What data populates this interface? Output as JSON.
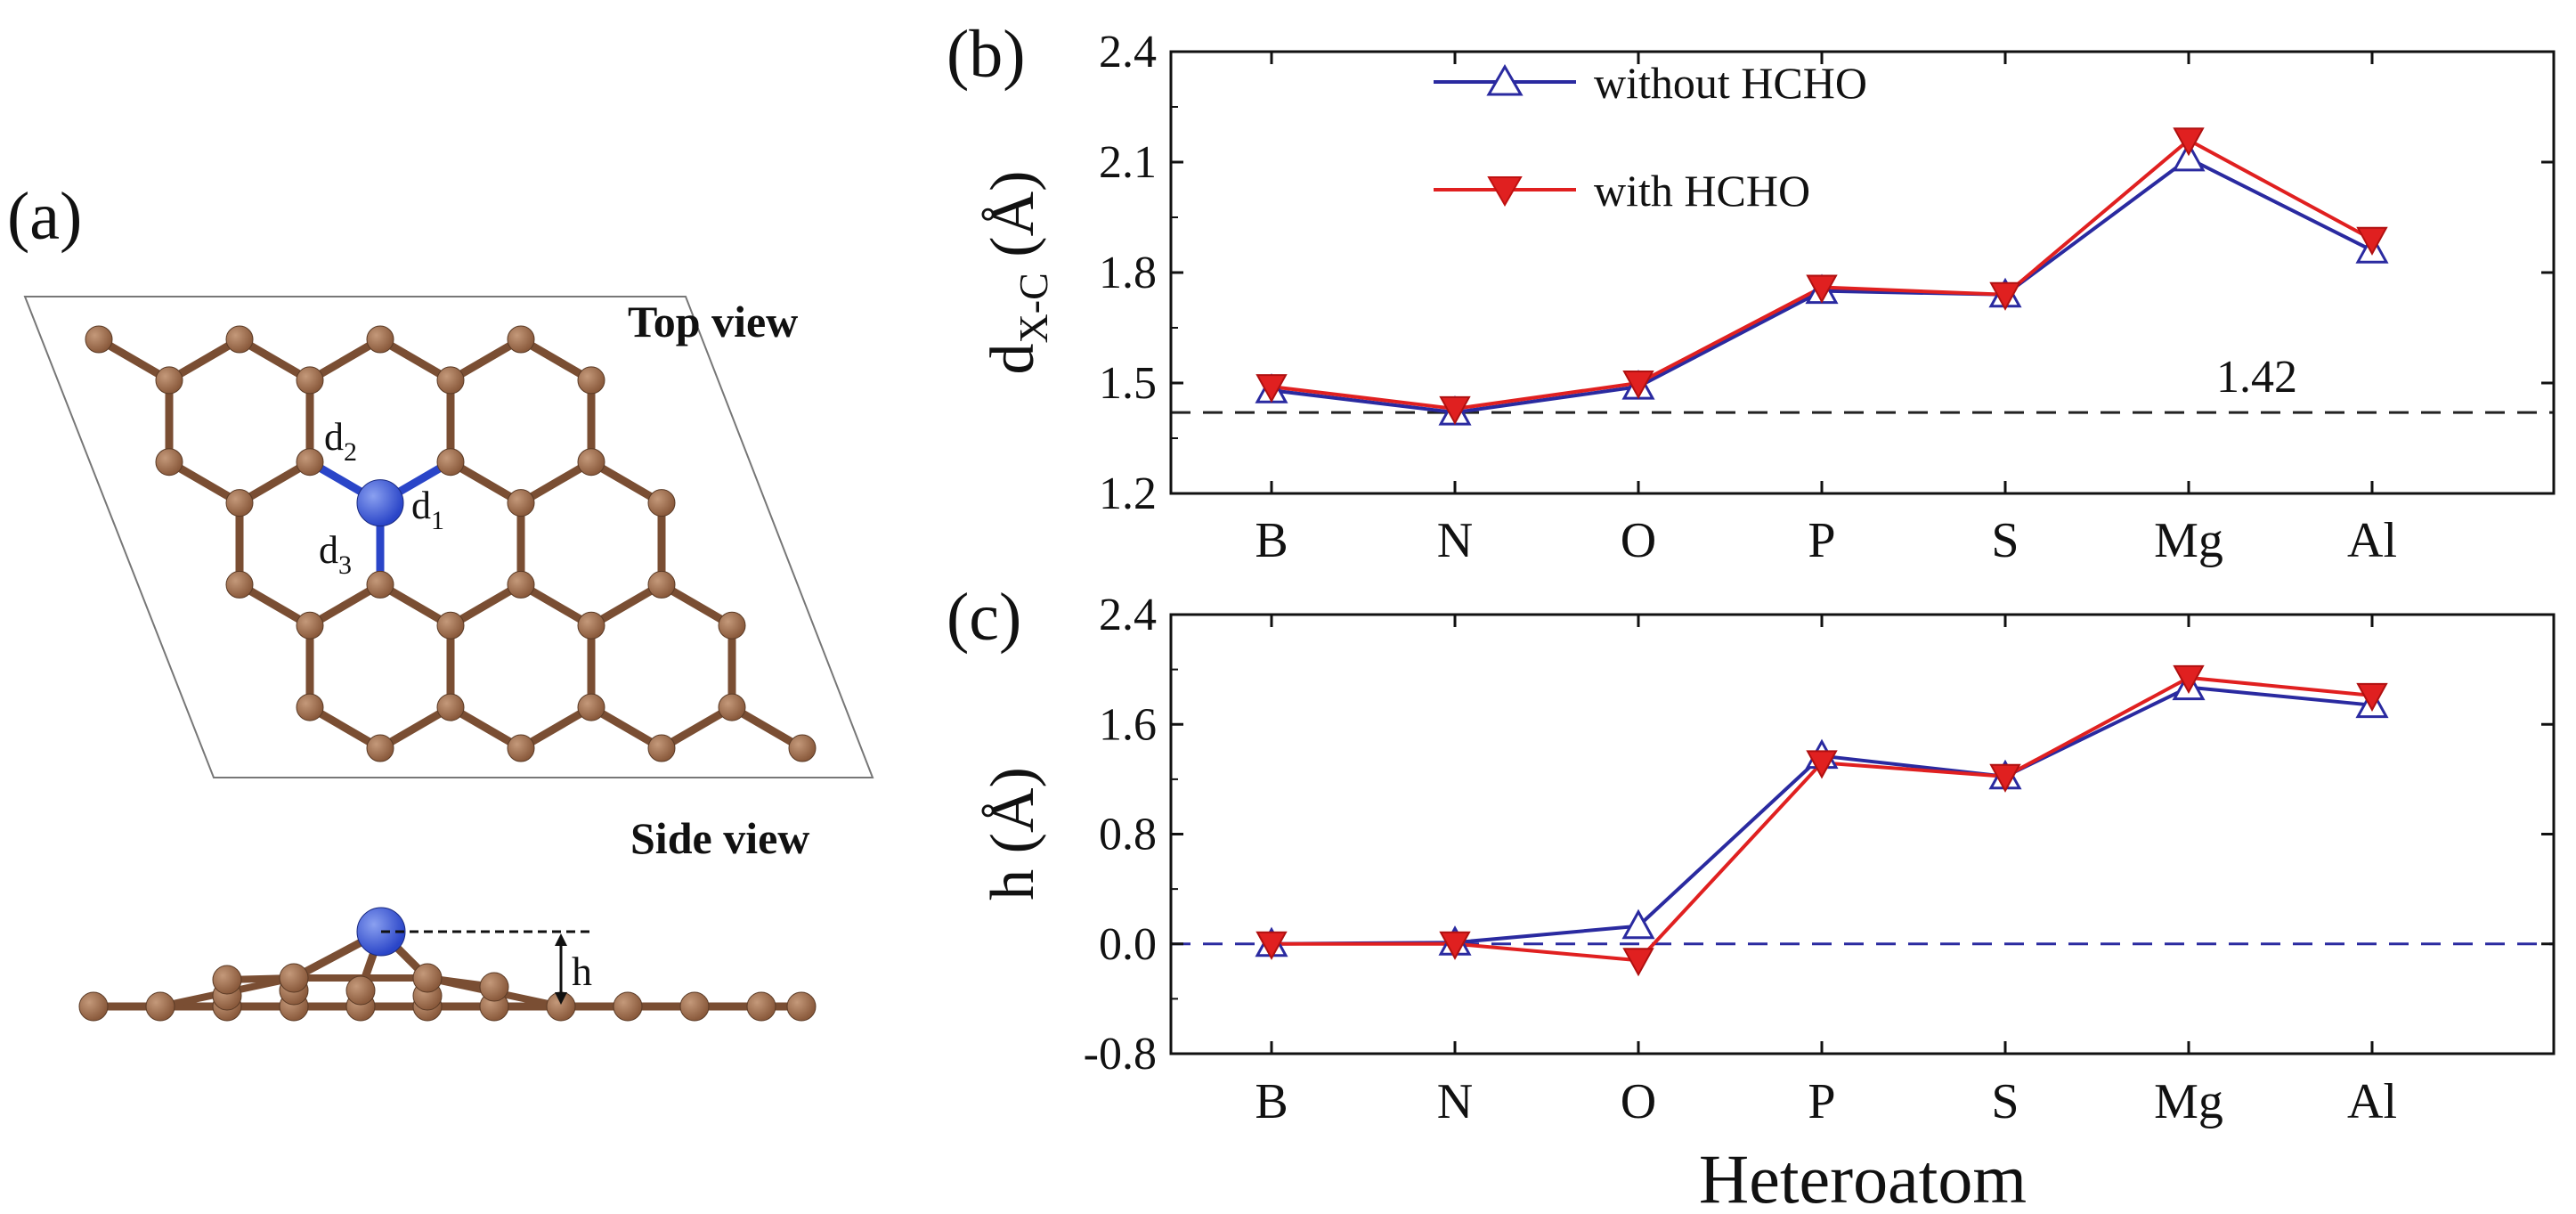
{
  "panels": {
    "a": {
      "label": "(a)",
      "top_view_label": "Top view",
      "side_view_label": "Side view",
      "bond_labels": [
        {
          "base": "d",
          "sub": "1"
        },
        {
          "base": "d",
          "sub": "2"
        },
        {
          "base": "d",
          "sub": "3"
        }
      ],
      "height_label": "h"
    },
    "b": {
      "label": "(b)"
    },
    "c": {
      "label": "(c)"
    }
  },
  "colors": {
    "without": "#2a2aa0",
    "with": "#e02020",
    "reference_b": "#222222",
    "reference_c": "#2a2aa0",
    "carbon": "#8a5a3c",
    "carbon_light": "#c4997a",
    "bond": "#7a4e33",
    "heteroatom": "#2a45c8",
    "heteroatom_light": "#8aa0f0"
  },
  "chart_data": [
    {
      "type": "line",
      "panel": "(b)",
      "categories": [
        "B",
        "N",
        "O",
        "P",
        "S",
        "Mg",
        "Al"
      ],
      "series": [
        {
          "name": "without HCHO",
          "marker": "open-triangle-up",
          "values": [
            1.48,
            1.42,
            1.49,
            1.75,
            1.74,
            2.11,
            1.86
          ]
        },
        {
          "name": "with HCHO",
          "marker": "filled-triangle-down",
          "values": [
            1.49,
            1.43,
            1.5,
            1.76,
            1.74,
            2.16,
            1.89
          ]
        }
      ],
      "xlabel": "",
      "ylabel": {
        "base": "d",
        "sub": "X-C",
        "unit": " (Å)"
      },
      "ylim": [
        1.2,
        2.4
      ],
      "yticks": [
        "1.2",
        "1.5",
        "1.8",
        "2.1",
        "2.4"
      ],
      "reference_line": {
        "value": 1.42,
        "label": "1.42",
        "style": "dashed"
      },
      "legend": "top-left"
    },
    {
      "type": "line",
      "panel": "(c)",
      "categories": [
        "B",
        "N",
        "O",
        "P",
        "S",
        "Mg",
        "Al"
      ],
      "series": [
        {
          "name": "without HCHO",
          "marker": "open-triangle-up",
          "values": [
            0.0,
            0.01,
            0.13,
            1.37,
            1.22,
            1.87,
            1.74
          ]
        },
        {
          "name": "with HCHO",
          "marker": "filled-triangle-down",
          "values": [
            0.0,
            0.0,
            -0.12,
            1.32,
            1.22,
            1.94,
            1.81
          ]
        }
      ],
      "xlabel": "Heteroatom",
      "ylabel": {
        "base": "h (Å)"
      },
      "ylim": [
        -0.8,
        2.4
      ],
      "yticks": [
        "-0.8",
        "0.0",
        "0.8",
        "1.6",
        "2.4"
      ],
      "reference_line": {
        "value": 0.0,
        "style": "dashed"
      }
    }
  ]
}
